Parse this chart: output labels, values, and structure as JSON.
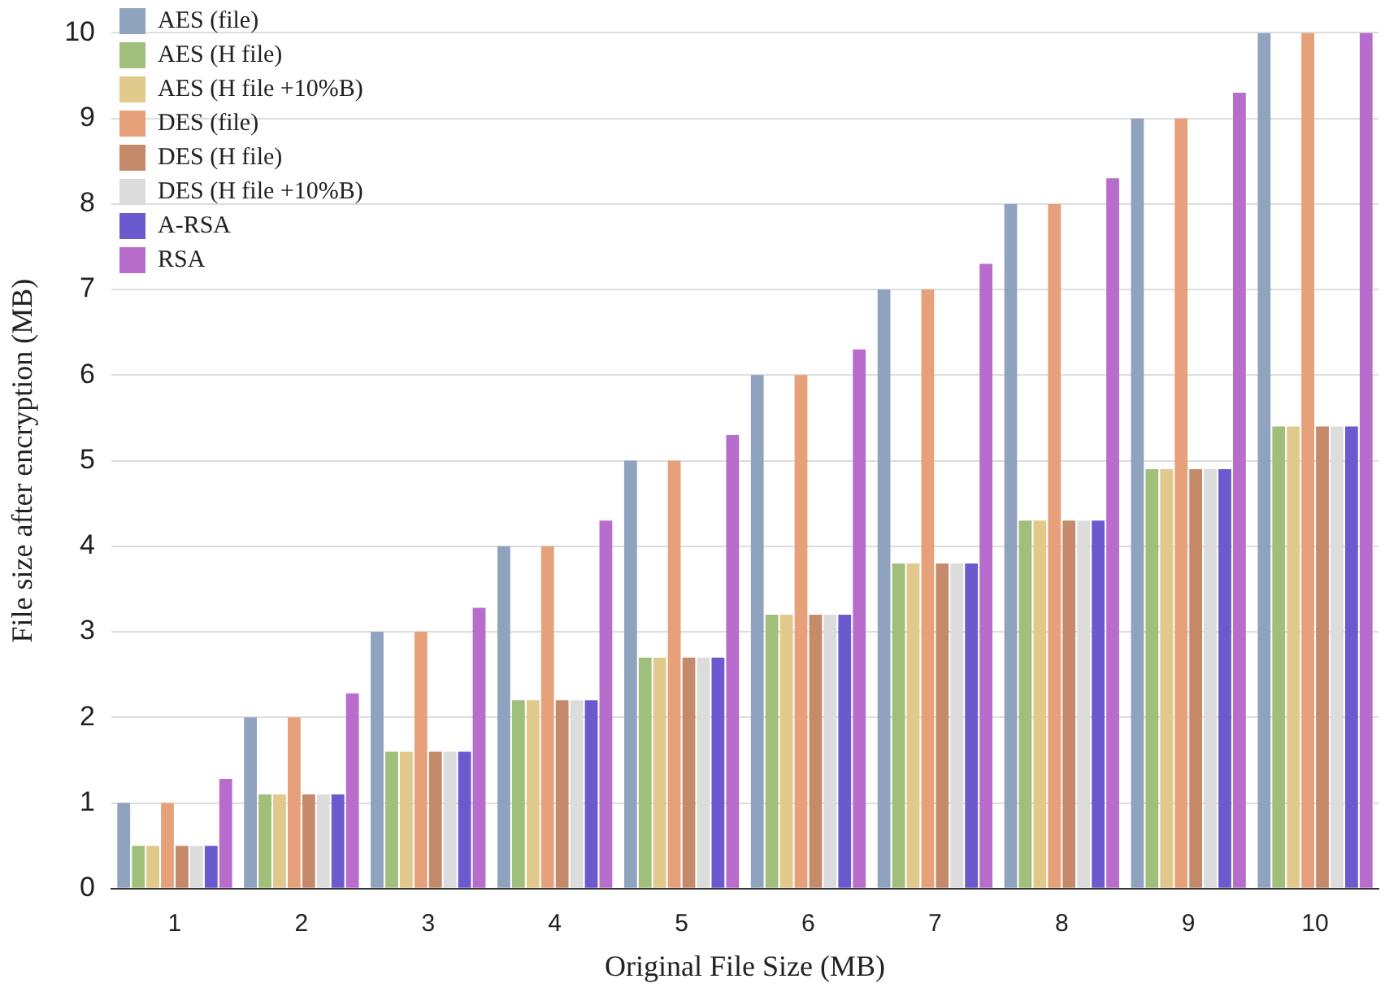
{
  "chart_data": {
    "type": "bar",
    "xlabel": "Original File Size (MB)",
    "ylabel": "File size after encryption (MB)",
    "categories": [
      "1",
      "2",
      "3",
      "4",
      "5",
      "6",
      "7",
      "8",
      "9",
      "10"
    ],
    "series": [
      {
        "name": "AES (file)",
        "color": "#8fa3bf",
        "values": [
          1,
          2,
          3,
          4,
          5,
          6,
          7,
          8,
          9,
          10
        ]
      },
      {
        "name": "AES (H file)",
        "color": "#9fbf7a",
        "values": [
          0.5,
          1.1,
          1.6,
          2.2,
          2.7,
          3.2,
          3.8,
          4.3,
          4.9,
          5.4
        ]
      },
      {
        "name": "AES (H file +10%B)",
        "color": "#e0c98a",
        "values": [
          0.5,
          1.1,
          1.6,
          2.2,
          2.7,
          3.2,
          3.8,
          4.3,
          4.9,
          5.4
        ]
      },
      {
        "name": "DES (file)",
        "color": "#e6a07a",
        "values": [
          1,
          2,
          3,
          4,
          5,
          6,
          7,
          8,
          9,
          10
        ]
      },
      {
        "name": "DES (H file)",
        "color": "#c48a6a",
        "values": [
          0.5,
          1.1,
          1.6,
          2.2,
          2.7,
          3.2,
          3.8,
          4.3,
          4.9,
          5.4
        ]
      },
      {
        "name": "DES (H file +10%B)",
        "color": "#dcdcdc",
        "values": [
          0.5,
          1.1,
          1.6,
          2.2,
          2.7,
          3.2,
          3.8,
          4.3,
          4.9,
          5.4
        ]
      },
      {
        "name": "A-RSA",
        "color": "#6a5acd",
        "values": [
          0.5,
          1.1,
          1.6,
          2.2,
          2.7,
          3.2,
          3.8,
          4.3,
          4.9,
          5.4
        ]
      },
      {
        "name": "RSA",
        "color": "#b86ccc",
        "values": [
          1.28,
          2.28,
          3.28,
          4.3,
          5.3,
          6.3,
          7.3,
          8.3,
          9.3,
          10
        ]
      }
    ],
    "ylim": [
      0,
      10
    ],
    "yticks": [
      0,
      1,
      2,
      3,
      4,
      5,
      6,
      7,
      8,
      9,
      10
    ],
    "grid": "y",
    "legend": "top left"
  }
}
